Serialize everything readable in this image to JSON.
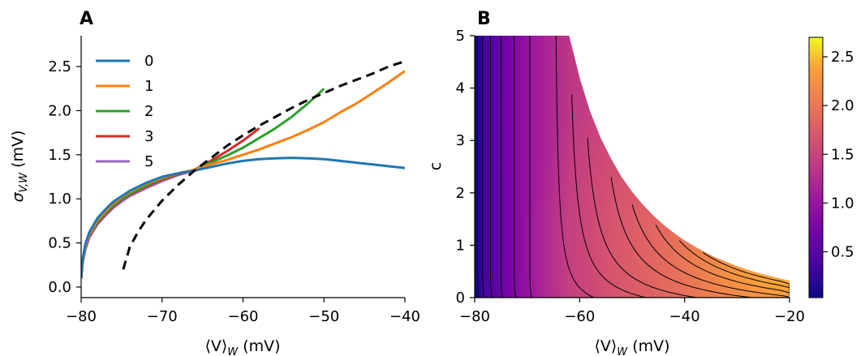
{
  "chart_data": [
    {
      "panel": "A",
      "type": "line",
      "xlabel": "⟨V⟩W (mV)",
      "ylabel": "σV,W (mV)",
      "xlim": [
        -80,
        -40
      ],
      "ylim": [
        -0.12,
        2.85
      ],
      "xticks": [
        -80,
        -70,
        -60,
        -50,
        -40
      ],
      "xtick_labels": [
        "−80",
        "−70",
        "−60",
        "−50",
        "−40"
      ],
      "yticks": [
        0.0,
        0.5,
        1.0,
        1.5,
        2.0,
        2.5
      ],
      "ytick_labels": [
        "0.0",
        "0.5",
        "1.0",
        "1.5",
        "2.0",
        "2.5"
      ],
      "legend_position": "top-left",
      "series": [
        {
          "name": "0",
          "color": "#1f77b4",
          "style": "solid",
          "x": [
            -80,
            -79.8,
            -79.5,
            -79,
            -78,
            -77,
            -76,
            -75,
            -74,
            -72,
            -70,
            -68,
            -66,
            -64,
            -62,
            -60,
            -58,
            -56,
            -54,
            -52,
            -50,
            -48,
            -46,
            -44,
            -42,
            -40
          ],
          "y": [
            0.1,
            0.32,
            0.48,
            0.62,
            0.78,
            0.88,
            0.97,
            1.03,
            1.09,
            1.18,
            1.25,
            1.29,
            1.32,
            1.36,
            1.4,
            1.43,
            1.45,
            1.46,
            1.465,
            1.46,
            1.45,
            1.43,
            1.41,
            1.39,
            1.37,
            1.35
          ]
        },
        {
          "name": "1",
          "color": "#ff7f0e",
          "style": "solid",
          "x": [
            -80,
            -79.8,
            -79.5,
            -79,
            -78,
            -77,
            -76,
            -75,
            -74,
            -72,
            -70,
            -68,
            -66,
            -64,
            -62,
            -60,
            -58,
            -56,
            -54,
            -52,
            -50,
            -48,
            -46,
            -44,
            -42,
            -40
          ],
          "y": [
            0.1,
            0.31,
            0.46,
            0.6,
            0.76,
            0.86,
            0.95,
            1.02,
            1.08,
            1.17,
            1.24,
            1.29,
            1.33,
            1.39,
            1.44,
            1.5,
            1.56,
            1.63,
            1.7,
            1.78,
            1.87,
            1.98,
            2.08,
            2.2,
            2.32,
            2.45
          ]
        },
        {
          "name": "2",
          "color": "#2ca02c",
          "style": "solid",
          "x": [
            -80,
            -79.8,
            -79.5,
            -79,
            -78,
            -77,
            -76,
            -75,
            -74,
            -72,
            -70,
            -68,
            -66,
            -64,
            -62,
            -60,
            -58,
            -56,
            -54,
            -52,
            -50
          ],
          "y": [
            0.1,
            0.3,
            0.45,
            0.59,
            0.74,
            0.84,
            0.93,
            1.0,
            1.06,
            1.15,
            1.23,
            1.29,
            1.33,
            1.41,
            1.49,
            1.58,
            1.69,
            1.8,
            1.93,
            2.08,
            2.25
          ]
        },
        {
          "name": "3",
          "color": "#d62728",
          "style": "solid",
          "x": [
            -80,
            -79.8,
            -79.5,
            -79,
            -78,
            -77,
            -76,
            -75,
            -74,
            -72,
            -70,
            -68,
            -66,
            -64,
            -62,
            -60,
            -58
          ],
          "y": [
            0.1,
            0.29,
            0.44,
            0.58,
            0.73,
            0.83,
            0.92,
            0.99,
            1.05,
            1.14,
            1.22,
            1.28,
            1.33,
            1.43,
            1.54,
            1.66,
            1.8
          ]
        },
        {
          "name": "5",
          "color": "#9467bd",
          "style": "solid",
          "x": [
            -80,
            -79.8,
            -79.5,
            -79,
            -78,
            -77,
            -76,
            -75,
            -74,
            -72,
            -70,
            -68,
            -66
          ],
          "y": [
            0.1,
            0.28,
            0.42,
            0.56,
            0.71,
            0.81,
            0.9,
            0.97,
            1.03,
            1.12,
            1.2,
            1.27,
            1.32
          ]
        },
        {
          "name": "",
          "color": "#000000",
          "style": "dashed",
          "x": [
            -74.8,
            -74,
            -73,
            -72,
            -70,
            -68,
            -66,
            -64,
            -62,
            -60,
            -58,
            -56,
            -54,
            -52,
            -50,
            -48,
            -46,
            -44,
            -42,
            -40
          ],
          "y": [
            0.2,
            0.45,
            0.62,
            0.76,
            0.98,
            1.16,
            1.32,
            1.46,
            1.6,
            1.72,
            1.83,
            1.93,
            2.03,
            2.12,
            2.2,
            2.28,
            2.35,
            2.42,
            2.5,
            2.56
          ]
        }
      ]
    },
    {
      "panel": "B",
      "type": "heatmap",
      "xlabel": "⟨V⟩W (mV)",
      "ylabel": "c",
      "xlim": [
        -80,
        -20
      ],
      "ylim": [
        0,
        5
      ],
      "xticks": [
        -80,
        -60,
        -40,
        -20
      ],
      "xtick_labels": [
        "−80",
        "−60",
        "−40",
        "−20"
      ],
      "yticks": [
        0,
        1,
        2,
        3,
        4,
        5
      ],
      "ytick_labels": [
        "0",
        "1",
        "2",
        "3",
        "4",
        "5"
      ],
      "colormap": "plasma",
      "colorbar_range": [
        0.03,
        2.7
      ],
      "colorbar_ticks": [
        0.5,
        1.0,
        1.5,
        2.0,
        2.5
      ],
      "colorbar_tick_labels": [
        "0.5",
        "1.0",
        "1.5",
        "2.0",
        "2.5"
      ],
      "valid_region_boundary": {
        "x": [
          -62,
          -61,
          -60,
          -58,
          -56,
          -54,
          -52,
          -50,
          -48,
          -46,
          -44,
          -42,
          -40,
          -38,
          -36,
          -34,
          -32,
          -30,
          -28,
          -26,
          -24,
          -22,
          -20
        ],
        "c": [
          5.0,
          4.6,
          4.2,
          3.55,
          3.05,
          2.65,
          2.3,
          2.02,
          1.78,
          1.57,
          1.39,
          1.23,
          1.09,
          0.97,
          0.86,
          0.76,
          0.68,
          0.6,
          0.53,
          0.47,
          0.42,
          0.37,
          0.32
        ]
      },
      "contour_vertical_x": [
        -79.5,
        -78.5,
        -77,
        -75,
        -72.5,
        -69.5
      ]
    }
  ]
}
